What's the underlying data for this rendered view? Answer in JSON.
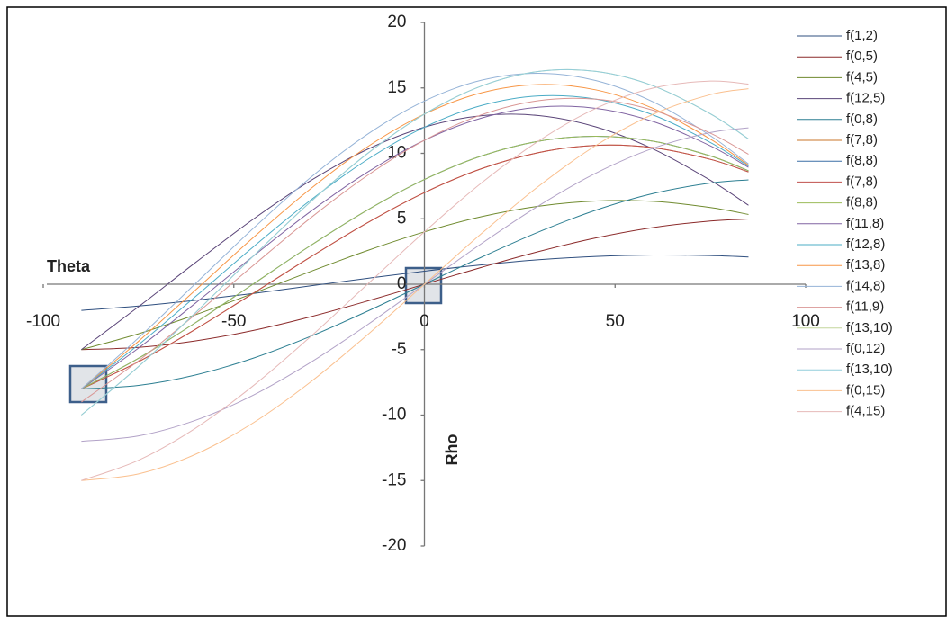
{
  "chart_data": {
    "type": "line",
    "x_label": "Theta",
    "y_label": "Rho",
    "x": [
      -90,
      -75,
      -60,
      -45,
      -30,
      -15,
      0,
      15,
      30,
      45,
      60,
      75,
      85
    ],
    "xlim": [
      -100,
      100
    ],
    "xticks": [
      -100,
      -50,
      0,
      50,
      100
    ],
    "ylim": [
      -20,
      20
    ],
    "yticks": [
      -20,
      -15,
      -10,
      -5,
      0,
      5,
      10,
      15,
      20
    ],
    "grid": false,
    "legend": "right",
    "series": [
      {
        "name": "f(1,2)",
        "color": "#2f4f7f",
        "values": [
          -2,
          -1.67,
          -1.23,
          -0.71,
          -0.13,
          0.45,
          1,
          1.48,
          1.87,
          2.12,
          2.23,
          2.19,
          2.08
        ]
      },
      {
        "name": "f(0,5)",
        "color": "#8b2a2a",
        "values": [
          -5,
          -4.83,
          -4.33,
          -3.54,
          -2.5,
          -1.29,
          0,
          1.29,
          2.5,
          3.54,
          4.33,
          4.83,
          4.98
        ]
      },
      {
        "name": "f(4,5)",
        "color": "#6f8a2e",
        "values": [
          -5,
          -3.79,
          -2.33,
          -0.71,
          0.96,
          2.57,
          4,
          5.16,
          5.96,
          6.36,
          6.33,
          5.86,
          5.33
        ]
      },
      {
        "name": "f(12,5)",
        "color": "#5a4478",
        "values": [
          -5,
          -1.72,
          1.67,
          4.95,
          7.89,
          10.3,
          12,
          12.88,
          12.89,
          12.02,
          10.33,
          7.94,
          6.03
        ]
      },
      {
        "name": "f(0,8)",
        "color": "#2d7f92",
        "values": [
          -8,
          -7.73,
          -6.93,
          -5.66,
          -4,
          -2.07,
          0,
          2.07,
          4,
          5.66,
          6.93,
          7.73,
          7.97
        ]
      },
      {
        "name": "f(7,8)",
        "color": "#c8742a",
        "values": [
          -8,
          -5.92,
          -3.43,
          -0.71,
          2.06,
          4.69,
          7,
          8.83,
          10.06,
          10.61,
          10.43,
          9.54,
          8.58
        ]
      },
      {
        "name": "f(8,8)",
        "color": "#3a6ea5",
        "values": [
          -8,
          -5.66,
          -2.93,
          0,
          2.93,
          5.66,
          8,
          9.8,
          10.93,
          11.31,
          10.93,
          9.8,
          8.67
        ]
      },
      {
        "name": "f(7,8)",
        "color": "#c0504d",
        "values": [
          -8,
          -5.92,
          -3.43,
          -0.71,
          2.06,
          4.69,
          7,
          8.83,
          10.06,
          10.61,
          10.43,
          9.54,
          8.58
        ]
      },
      {
        "name": "f(8,8)",
        "color": "#9bbb59",
        "values": [
          -8,
          -5.66,
          -2.93,
          0,
          2.93,
          5.66,
          8,
          9.8,
          10.93,
          11.31,
          10.93,
          9.8,
          8.67
        ]
      },
      {
        "name": "f(11,8)",
        "color": "#8064a2",
        "values": [
          -8,
          -4.88,
          -1.43,
          2.12,
          5.53,
          8.55,
          11,
          12.7,
          13.53,
          13.44,
          12.43,
          10.57,
          8.93
        ]
      },
      {
        "name": "f(12,8)",
        "color": "#4bacc6",
        "values": [
          -8,
          -4.62,
          -0.93,
          2.83,
          6.39,
          9.52,
          12,
          13.66,
          14.39,
          14.14,
          12.93,
          10.83,
          9.02
        ]
      },
      {
        "name": "f(13,8)",
        "color": "#f79646",
        "values": [
          -8,
          -4.36,
          -0.43,
          3.54,
          7.26,
          10.49,
          13,
          14.63,
          15.26,
          14.85,
          13.43,
          11.09,
          9.1
        ]
      },
      {
        "name": "f(14,8)",
        "color": "#95b3d7",
        "values": [
          -8,
          -4.1,
          0.07,
          4.24,
          8.12,
          11.45,
          14,
          15.59,
          16.12,
          15.56,
          13.93,
          11.35,
          9.19
        ]
      },
      {
        "name": "f(11,9)",
        "color": "#d99694",
        "values": [
          -9,
          -5.85,
          -2.29,
          1.41,
          5.03,
          8.3,
          11,
          12.95,
          14.03,
          14.14,
          13.29,
          11.54,
          9.93
        ]
      },
      {
        "name": "f(13,10)",
        "color": "#c3d69b",
        "values": [
          -10,
          -6.29,
          -2.16,
          2.12,
          6.26,
          9.97,
          13,
          15.15,
          16.26,
          16.26,
          15.16,
          13.02,
          11.1
        ]
      },
      {
        "name": "f(0,12)",
        "color": "#b2a2c7",
        "values": [
          -12,
          -11.59,
          -10.39,
          -8.49,
          -6,
          -3.11,
          0,
          3.11,
          6,
          8.49,
          10.39,
          11.59,
          11.95
        ]
      },
      {
        "name": "f(13,10)",
        "color": "#92cddc",
        "values": [
          -10,
          -6.29,
          -2.16,
          2.12,
          6.26,
          9.97,
          13,
          15.15,
          16.26,
          16.26,
          15.16,
          13.02,
          11.1
        ]
      },
      {
        "name": "f(0,15)",
        "color": "#fac08f",
        "values": [
          -15,
          -14.49,
          -12.99,
          -10.61,
          -7.5,
          -3.88,
          0,
          3.88,
          7.5,
          10.61,
          12.99,
          14.49,
          14.94
        ]
      },
      {
        "name": "f(4,15)",
        "color": "#e6b9b8",
        "values": [
          -15,
          -13.45,
          -10.99,
          -7.78,
          -4.04,
          -0.02,
          4,
          7.75,
          10.96,
          13.44,
          14.99,
          15.52,
          15.29
        ]
      }
    ]
  }
}
